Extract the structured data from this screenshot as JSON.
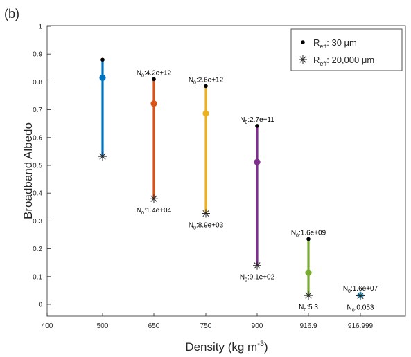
{
  "panel_label": "(b)",
  "chart_data": {
    "type": "scatter",
    "xlabel": "Density (kg m",
    "xlabel_sup": "-3",
    "xlabel_end": ")",
    "ylabel": "Broadband Albedo",
    "ylim": [
      0,
      1
    ],
    "yticks": [
      "0",
      "0.1",
      "0.2",
      "0.3",
      "0.4",
      "0.5",
      "0.6",
      "0.7",
      "0.8",
      "0.9",
      "1"
    ],
    "categories": [
      "400",
      "500",
      "650",
      "750",
      "900",
      "916.9",
      "916.999"
    ],
    "grid": false,
    "legend_position": "top-right",
    "legend": [
      {
        "base": "R",
        "sub": "eff",
        "text": ": 30 μm",
        "marker": "dot"
      },
      {
        "base": "R",
        "sub": "eff",
        "text": ": 20,000 μm",
        "marker": "star"
      }
    ],
    "series": [
      {
        "category": "500",
        "color": "#0072BD",
        "top": 0.88,
        "mid": 0.815,
        "bottom": 0.532,
        "top_label": "",
        "bottom_label": ""
      },
      {
        "category": "650",
        "color": "#D95319",
        "top": 0.81,
        "mid": 0.722,
        "bottom": 0.38,
        "top_label": ":4.2e+12",
        "bottom_label": ":1.4e+04"
      },
      {
        "category": "750",
        "color": "#EDB120",
        "top": 0.785,
        "mid": 0.687,
        "bottom": 0.327,
        "top_label": ":2.6e+12",
        "bottom_label": ":8.9e+03"
      },
      {
        "category": "900",
        "color": "#7E2F8E",
        "top": 0.642,
        "mid": 0.512,
        "bottom": 0.14,
        "top_label": ":2.7e+11",
        "bottom_label": ":9.1e+02"
      },
      {
        "category": "916.9",
        "color": "#77AC30",
        "top": 0.235,
        "mid": 0.114,
        "bottom": 0.032,
        "top_label": ":1.6e+09",
        "bottom_label": ":5.3"
      },
      {
        "category": "916.999",
        "color": "#4DBEEE",
        "top": 0.035,
        "mid": 0.033,
        "bottom": 0.031,
        "top_label": ":1.6e+07",
        "bottom_label": ":0.053"
      }
    ],
    "annotation_base": "N",
    "annotation_sub": "0"
  }
}
